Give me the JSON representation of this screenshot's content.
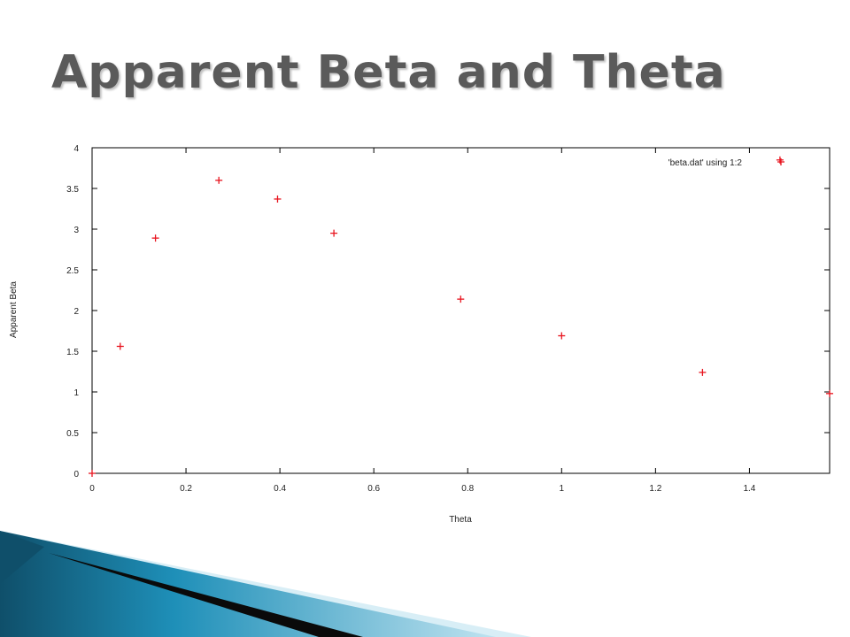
{
  "slide": {
    "title": "Apparent Beta and Theta"
  },
  "colors": {
    "title": "#5a5a5a",
    "marker": "#e8141e",
    "axis": "#000000",
    "decor_dark": "#0f4f6a",
    "decor_mid": "#1e8fb8",
    "decor_light": "#bfe3f0"
  },
  "chart_data": {
    "type": "scatter",
    "xlabel": "Theta",
    "ylabel": "Apparent Beta",
    "xlim": [
      0,
      1.5708
    ],
    "ylim": [
      0,
      4
    ],
    "x_ticks": [
      0,
      0.2,
      0.4,
      0.6,
      0.8,
      1,
      1.2,
      1.4
    ],
    "x_tick_labels": [
      "0",
      "0.2",
      "0.4",
      "0.6",
      "0.8",
      "1",
      "1.2",
      "1.4"
    ],
    "y_ticks": [
      0,
      0.5,
      1,
      1.5,
      2,
      2.5,
      3,
      3.5,
      4
    ],
    "y_tick_labels": [
      "0",
      "0.5",
      "1",
      "1.5",
      "2",
      "2.5",
      "3",
      "3.5",
      "4"
    ],
    "grid": false,
    "legend_position": "top-right",
    "series": [
      {
        "name": "'beta.dat' using 1:2",
        "marker": "plus",
        "x": [
          0.0,
          0.06,
          0.135,
          0.27,
          0.395,
          0.515,
          0.785,
          1.0,
          1.3,
          1.465,
          1.5708
        ],
        "y": [
          0.0,
          1.56,
          2.89,
          3.6,
          3.37,
          2.95,
          2.14,
          1.69,
          1.24,
          3.85,
          0.98
        ]
      }
    ]
  }
}
